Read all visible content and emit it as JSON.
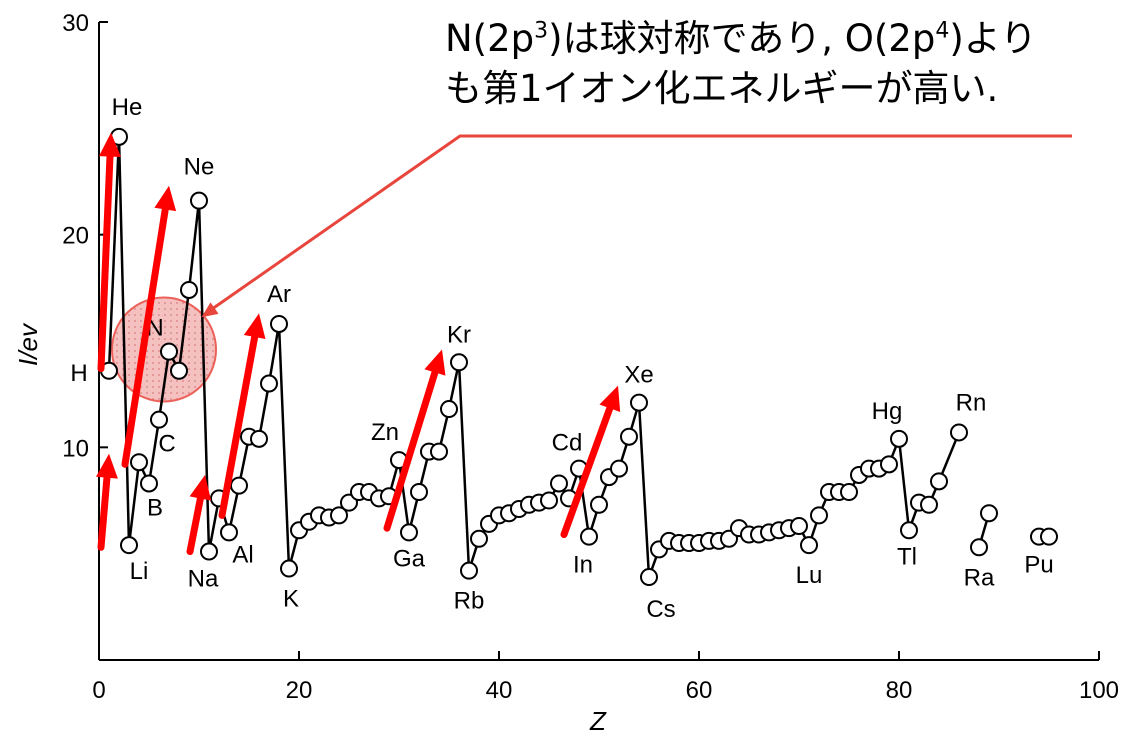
{
  "annotation": {
    "line1_pre": "N(2p",
    "line1_sup1": "3",
    "line1_mid": ")は球対称であり, O(2p",
    "line1_sup2": "4",
    "line1_post": ")より",
    "line2": "も第1イオン化エネルギーが高い."
  },
  "chart_data": {
    "type": "line",
    "xlabel": "Z",
    "ylabel": "I/ev",
    "xlim": [
      0,
      100
    ],
    "ylim": [
      0,
      30
    ],
    "xticks": [
      "0",
      "20",
      "40",
      "60",
      "80",
      "100"
    ],
    "yticks": [
      "10",
      "20",
      "30"
    ],
    "grid": false,
    "segments": [
      [
        [
          1,
          13.6
        ],
        [
          2,
          24.6
        ],
        [
          3,
          5.4
        ],
        [
          4,
          9.3
        ],
        [
          5,
          8.3
        ],
        [
          6,
          11.3
        ],
        [
          7,
          14.5
        ],
        [
          8,
          13.6
        ],
        [
          9,
          17.4
        ],
        [
          10,
          21.6
        ],
        [
          11,
          5.1
        ],
        [
          12,
          7.6
        ],
        [
          13,
          6.0
        ],
        [
          14,
          8.2
        ],
        [
          15,
          10.5
        ],
        [
          16,
          10.4
        ],
        [
          17,
          13.0
        ],
        [
          18,
          15.8
        ],
        [
          19,
          4.3
        ],
        [
          20,
          6.1
        ],
        [
          21,
          6.5
        ],
        [
          22,
          6.8
        ],
        [
          23,
          6.7
        ],
        [
          24,
          6.8
        ],
        [
          25,
          7.4
        ],
        [
          26,
          7.9
        ],
        [
          27,
          7.9
        ],
        [
          28,
          7.6
        ],
        [
          29,
          7.7
        ],
        [
          30,
          9.4
        ],
        [
          31,
          6.0
        ],
        [
          32,
          7.9
        ],
        [
          33,
          9.8
        ],
        [
          34,
          9.8
        ],
        [
          35,
          11.8
        ],
        [
          36,
          14.0
        ],
        [
          37,
          4.2
        ],
        [
          38,
          5.7
        ],
        [
          39,
          6.4
        ],
        [
          40,
          6.8
        ],
        [
          41,
          6.9
        ],
        [
          42,
          7.1
        ],
        [
          43,
          7.3
        ],
        [
          44,
          7.4
        ],
        [
          45,
          7.5
        ],
        [
          46,
          8.3
        ],
        [
          47,
          7.6
        ],
        [
          48,
          9.0
        ],
        [
          49,
          5.8
        ],
        [
          50,
          7.3
        ],
        [
          51,
          8.6
        ],
        [
          52,
          9.0
        ],
        [
          53,
          10.5
        ],
        [
          54,
          12.1
        ],
        [
          55,
          3.9
        ],
        [
          56,
          5.2
        ],
        [
          57,
          5.6
        ],
        [
          58,
          5.5
        ],
        [
          59,
          5.5
        ],
        [
          60,
          5.5
        ],
        [
          61,
          5.6
        ],
        [
          62,
          5.6
        ],
        [
          63,
          5.7
        ],
        [
          64,
          6.2
        ],
        [
          65,
          5.9
        ],
        [
          66,
          5.9
        ],
        [
          67,
          6.0
        ],
        [
          68,
          6.1
        ],
        [
          69,
          6.2
        ],
        [
          70,
          6.3
        ],
        [
          71,
          5.4
        ],
        [
          72,
          6.8
        ],
        [
          73,
          7.9
        ],
        [
          74,
          7.9
        ],
        [
          75,
          7.9
        ],
        [
          76,
          8.7
        ],
        [
          77,
          9.0
        ],
        [
          78,
          9.0
        ],
        [
          79,
          9.2
        ],
        [
          80,
          10.4
        ],
        [
          81,
          6.1
        ],
        [
          82,
          7.4
        ],
        [
          83,
          7.3
        ],
        [
          84,
          8.4
        ],
        [
          86,
          10.7
        ]
      ],
      [
        [
          88,
          5.3
        ],
        [
          89,
          6.9
        ]
      ],
      [
        [
          94,
          5.8
        ],
        [
          95,
          5.8
        ]
      ]
    ],
    "element_labels": [
      {
        "text": "H",
        "z": 1,
        "y": 13.6
      },
      {
        "text": "He",
        "z": 2,
        "y": 24.6
      },
      {
        "text": "Li",
        "z": 3,
        "y": 5.4
      },
      {
        "text": "B",
        "z": 5,
        "y": 8.3
      },
      {
        "text": "C",
        "z": 6,
        "y": 11.3
      },
      {
        "text": "N",
        "z": 7,
        "y": 14.5
      },
      {
        "text": "Ne",
        "z": 10,
        "y": 21.6
      },
      {
        "text": "Na",
        "z": 11,
        "y": 5.1
      },
      {
        "text": "Al",
        "z": 13,
        "y": 6.0
      },
      {
        "text": "Ar",
        "z": 18,
        "y": 15.8
      },
      {
        "text": "K",
        "z": 19,
        "y": 4.3
      },
      {
        "text": "Zn",
        "z": 30,
        "y": 9.4
      },
      {
        "text": "Ga",
        "z": 31,
        "y": 6.0
      },
      {
        "text": "Kr",
        "z": 36,
        "y": 14.0
      },
      {
        "text": "Rb",
        "z": 37,
        "y": 4.2
      },
      {
        "text": "Cd",
        "z": 48,
        "y": 9.0
      },
      {
        "text": "In",
        "z": 49,
        "y": 5.8
      },
      {
        "text": "Xe",
        "z": 54,
        "y": 12.1
      },
      {
        "text": "Cs",
        "z": 55,
        "y": 3.9
      },
      {
        "text": "Lu",
        "z": 71,
        "y": 5.4
      },
      {
        "text": "Hg",
        "z": 80,
        "y": 10.4
      },
      {
        "text": "Tl",
        "z": 81,
        "y": 6.1
      },
      {
        "text": "Rn",
        "z": 86,
        "y": 10.7
      },
      {
        "text": "Ra",
        "z": 88,
        "y": 5.3
      },
      {
        "text": "Pu",
        "z": 94,
        "y": 5.8
      }
    ],
    "highlight_circle": {
      "z": 6.5,
      "y": 14.6,
      "radius_z": 5.2
    },
    "arrows": [
      {
        "from": [
          0.2,
          13.7
        ],
        "to": [
          1.2,
          24.8
        ]
      },
      {
        "from": [
          0.2,
          5.3
        ],
        "to": [
          1.0,
          9.7
        ]
      },
      {
        "from": [
          2.6,
          9.2
        ],
        "to": [
          7.0,
          22.3
        ]
      },
      {
        "from": [
          9.1,
          5.1
        ],
        "to": [
          10.6,
          8.7
        ]
      },
      {
        "from": [
          12.3,
          6.8
        ],
        "to": [
          16.0,
          16.3
        ]
      },
      {
        "from": [
          28.8,
          6.2
        ],
        "to": [
          34.3,
          14.6
        ]
      },
      {
        "from": [
          46.5,
          5.9
        ],
        "to": [
          51.9,
          12.9
        ]
      }
    ],
    "colors": {
      "line": "#000000",
      "marker_fill": "#ffffff",
      "arrow": "#ff0000",
      "highlight_fill": "#f4b6b6",
      "highlight_stroke": "#e8453c",
      "callout": "#e8453c"
    }
  }
}
